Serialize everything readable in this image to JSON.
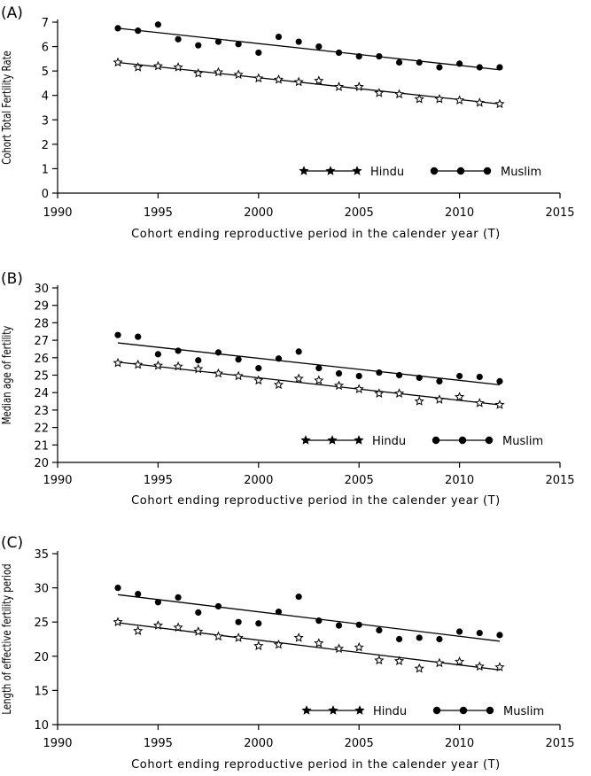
{
  "chart_data": [
    {
      "type": "scatter",
      "panel_label": "(A)",
      "xlabel": "Cohort ending reproductive period in the calender year (T)",
      "ylabel": "Cohort Total Fertility Rate",
      "xlim": [
        1990,
        2015
      ],
      "ylim": [
        0,
        7
      ],
      "xticks": [
        1990,
        1995,
        2000,
        2005,
        2010,
        2015
      ],
      "yticks": [
        0,
        1,
        2,
        3,
        4,
        5,
        6,
        7
      ],
      "x": [
        1993,
        1994,
        1995,
        1996,
        1997,
        1998,
        1999,
        2000,
        2001,
        2002,
        2003,
        2004,
        2005,
        2006,
        2007,
        2008,
        2009,
        2010,
        2011,
        2012
      ],
      "legend_position": "bottom-right, inside",
      "series": [
        {
          "name": "Hindu",
          "marker": "star",
          "values": [
            5.35,
            5.15,
            5.2,
            5.15,
            4.9,
            4.95,
            4.85,
            4.7,
            4.65,
            4.55,
            4.6,
            4.35,
            4.35,
            4.1,
            4.05,
            3.85,
            3.85,
            3.8,
            3.7,
            3.65
          ],
          "trend": [
            5.35,
            3.65
          ]
        },
        {
          "name": "Muslim",
          "marker": "circle",
          "values": [
            6.75,
            6.65,
            6.9,
            6.3,
            6.05,
            6.2,
            6.1,
            5.75,
            6.4,
            6.2,
            6.0,
            5.75,
            5.6,
            5.6,
            5.35,
            5.35,
            5.15,
            5.3,
            5.15,
            5.15
          ],
          "trend": [
            6.75,
            5.05
          ]
        }
      ]
    },
    {
      "type": "scatter",
      "panel_label": "(B)",
      "xlabel": "Cohort ending reproductive period in the calender year (T)",
      "ylabel": "Median age of fertility",
      "xlim": [
        1990,
        2015
      ],
      "ylim": [
        20,
        30
      ],
      "xticks": [
        1990,
        1995,
        2000,
        2005,
        2010,
        2015
      ],
      "yticks": [
        20,
        21,
        22,
        23,
        24,
        25,
        26,
        27,
        28,
        29,
        30
      ],
      "x": [
        1993,
        1994,
        1995,
        1996,
        1997,
        1998,
        1999,
        2000,
        2001,
        2002,
        2003,
        2004,
        2005,
        2006,
        2007,
        2008,
        2009,
        2010,
        2011,
        2012
      ],
      "legend_position": "bottom-right, inside",
      "series": [
        {
          "name": "Hindu",
          "marker": "star",
          "values": [
            25.7,
            25.6,
            25.55,
            25.5,
            25.35,
            25.1,
            24.95,
            24.7,
            24.45,
            24.8,
            24.7,
            24.4,
            24.2,
            23.95,
            23.95,
            23.5,
            23.6,
            23.75,
            23.4,
            23.3
          ],
          "trend": [
            25.75,
            23.3
          ]
        },
        {
          "name": "Muslim",
          "marker": "circle",
          "values": [
            27.3,
            27.2,
            26.2,
            26.4,
            25.85,
            26.3,
            25.9,
            25.4,
            25.95,
            26.35,
            25.4,
            25.1,
            24.95,
            25.15,
            25.0,
            24.85,
            24.65,
            24.95,
            24.9,
            24.65
          ],
          "trend": [
            26.85,
            24.45
          ]
        }
      ]
    },
    {
      "type": "scatter",
      "panel_label": "(C)",
      "xlabel": "Cohort ending reproductive period in the calender year (T)",
      "ylabel": "Length of effective fertility period",
      "xlim": [
        1990,
        2015
      ],
      "ylim": [
        10,
        35
      ],
      "xticks": [
        1990,
        1995,
        2000,
        2005,
        2010,
        2015
      ],
      "yticks": [
        10,
        15,
        20,
        25,
        30,
        35
      ],
      "x": [
        1993,
        1994,
        1995,
        1996,
        1997,
        1998,
        1999,
        2000,
        2001,
        2002,
        2003,
        2004,
        2005,
        2006,
        2007,
        2008,
        2009,
        2010,
        2011,
        2012
      ],
      "legend_position": "bottom-right, inside",
      "series": [
        {
          "name": "Hindu",
          "marker": "star",
          "values": [
            25.0,
            23.7,
            24.5,
            24.2,
            23.6,
            22.9,
            22.7,
            21.5,
            21.7,
            22.7,
            21.9,
            21.1,
            21.3,
            19.4,
            19.3,
            18.2,
            19.0,
            19.2,
            18.5,
            18.4
          ],
          "trend": [
            24.9,
            18.0
          ]
        },
        {
          "name": "Muslim",
          "marker": "circle",
          "values": [
            30.0,
            29.1,
            27.9,
            28.6,
            26.4,
            27.3,
            25.0,
            24.8,
            26.5,
            28.7,
            25.2,
            24.5,
            24.6,
            23.8,
            22.5,
            22.7,
            22.5,
            23.6,
            23.4,
            23.1
          ],
          "trend": [
            29.0,
            22.2
          ]
        }
      ]
    }
  ]
}
